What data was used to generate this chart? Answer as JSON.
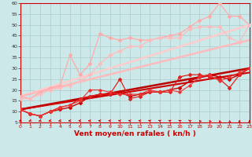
{
  "bg_color": "#cce8e8",
  "grid_color": "#aacccc",
  "xlabel": "Vent moyen/en rafales ( kn/h )",
  "xlabel_color": "#cc0000",
  "xlabel_fontsize": 6.5,
  "xlim": [
    0,
    23
  ],
  "ylim": [
    5,
    60
  ],
  "yticks": [
    5,
    10,
    15,
    20,
    25,
    30,
    35,
    40,
    45,
    50,
    55,
    60
  ],
  "xticks": [
    0,
    1,
    2,
    3,
    4,
    5,
    6,
    7,
    8,
    9,
    10,
    11,
    12,
    13,
    14,
    15,
    16,
    17,
    18,
    19,
    20,
    21,
    22,
    23
  ],
  "series": [
    {
      "label": "light1",
      "x": [
        0,
        1,
        2,
        3,
        4,
        5,
        6,
        7,
        8,
        9,
        10,
        11,
        12,
        13,
        14,
        15,
        16,
        17,
        18,
        19,
        20,
        21,
        22,
        23
      ],
      "y": [
        17,
        16,
        19,
        21,
        22,
        36,
        27,
        32,
        46,
        44,
        43,
        44,
        43,
        43,
        44,
        45,
        46,
        49,
        52,
        54,
        60,
        54,
        54,
        50
      ],
      "color": "#ffaaaa",
      "lw": 0.9,
      "marker": "D",
      "ms": 2.0,
      "zorder": 3
    },
    {
      "label": "light2",
      "x": [
        0,
        1,
        2,
        3,
        4,
        5,
        6,
        7,
        8,
        9,
        10,
        11,
        12,
        13,
        14,
        15,
        16,
        17,
        18,
        19,
        20,
        21,
        22,
        23
      ],
      "y": [
        16,
        16,
        18,
        20,
        21,
        22,
        24,
        27,
        32,
        36,
        38,
        40,
        40,
        43,
        44,
        44,
        44,
        48,
        49,
        49,
        49,
        44,
        42,
        50
      ],
      "color": "#ffbbbb",
      "lw": 0.9,
      "marker": "D",
      "ms": 2.0,
      "zorder": 3
    },
    {
      "label": "dark1",
      "x": [
        0,
        1,
        2,
        3,
        4,
        5,
        6,
        7,
        8,
        9,
        10,
        11,
        12,
        13,
        14,
        15,
        16,
        17,
        18,
        19,
        20,
        21,
        22,
        23
      ],
      "y": [
        11,
        9,
        8,
        10,
        11,
        12,
        14,
        17,
        18,
        18,
        19,
        17,
        18,
        19,
        19,
        20,
        21,
        24,
        26,
        27,
        26,
        25,
        27,
        30
      ],
      "color": "#cc0000",
      "lw": 1.0,
      "marker": "D",
      "ms": 2.0,
      "zorder": 4
    },
    {
      "label": "dark2",
      "x": [
        0,
        1,
        2,
        3,
        4,
        5,
        6,
        7,
        8,
        9,
        10,
        11,
        12,
        13,
        14,
        15,
        16,
        17,
        18,
        19,
        20,
        21,
        22,
        23
      ],
      "y": [
        11,
        9,
        8,
        10,
        12,
        13,
        16,
        17,
        18,
        18,
        25,
        16,
        17,
        19,
        19,
        19,
        26,
        27,
        27,
        26,
        25,
        21,
        27,
        30
      ],
      "color": "#dd2222",
      "lw": 0.9,
      "marker": "D",
      "ms": 2.0,
      "zorder": 4
    },
    {
      "label": "dark3",
      "x": [
        0,
        1,
        2,
        3,
        4,
        5,
        6,
        7,
        8,
        9,
        10,
        11,
        12,
        13,
        14,
        15,
        16,
        17,
        18,
        19,
        20,
        21,
        22,
        23
      ],
      "y": [
        11,
        9,
        8,
        10,
        12,
        13,
        15,
        20,
        20,
        19,
        18,
        18,
        18,
        20,
        19,
        20,
        19,
        22,
        26,
        27,
        24,
        26,
        28,
        30
      ],
      "color": "#ee3333",
      "lw": 0.8,
      "marker": "D",
      "ms": 1.8,
      "zorder": 4
    }
  ],
  "trend_lines": [
    {
      "x": [
        0,
        23
      ],
      "y": [
        17,
        50
      ],
      "color": "#ffcccc",
      "lw": 1.8,
      "zorder": 2
    },
    {
      "x": [
        0,
        23
      ],
      "y": [
        17,
        43
      ],
      "color": "#ffbbbb",
      "lw": 1.8,
      "zorder": 2
    },
    {
      "x": [
        0,
        23
      ],
      "y": [
        11,
        30
      ],
      "color": "#bb0000",
      "lw": 1.8,
      "zorder": 2
    },
    {
      "x": [
        0,
        23
      ],
      "y": [
        11,
        28
      ],
      "color": "#cc0000",
      "lw": 1.5,
      "zorder": 2
    }
  ],
  "arrow_angles": [
    225,
    220,
    215,
    210,
    205,
    195,
    185,
    180,
    175,
    170,
    165,
    160,
    155,
    150,
    145,
    140,
    135,
    125,
    115,
    110,
    100,
    95,
    90,
    90
  ],
  "arrow_color": "#cc0000"
}
